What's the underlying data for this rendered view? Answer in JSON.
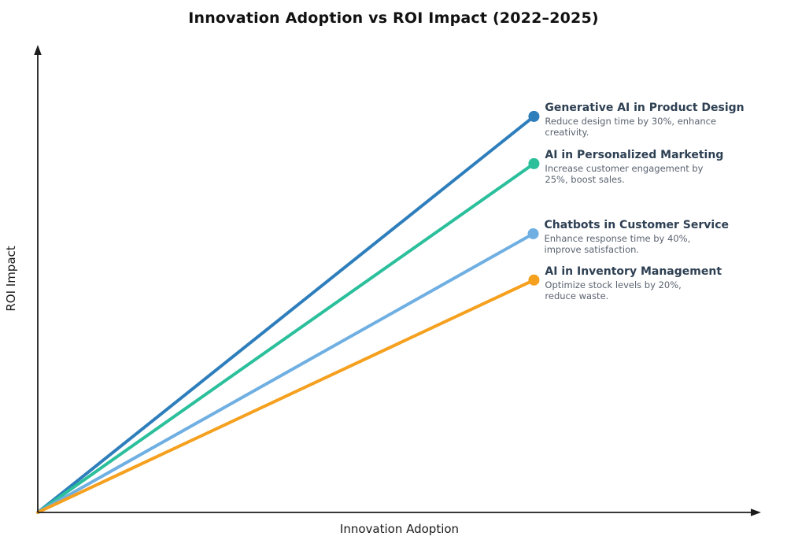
{
  "title": "Innovation Adoption vs ROI Impact (2022–2025)",
  "chart_data": {
    "type": "line",
    "title": "Innovation Adoption vs ROI Impact (2022–2025)",
    "xlabel": "Innovation Adoption",
    "ylabel": "ROI Impact",
    "x_range": [
      0,
      1
    ],
    "y_range": [
      0,
      1
    ],
    "grid": false,
    "ticks": "none (conceptual axes with arrowheads, no tick labels)",
    "legend_position": "none (direct labels at line endpoints)",
    "axis_color": "#1c1c1c",
    "series": [
      {
        "name": "Generative AI in Product Design",
        "description": "Reduce design time by 30%, enhance\ncreativity.",
        "color": "#2e7ebc",
        "x": [
          0,
          0.686
        ],
        "y": [
          0,
          0.847
        ]
      },
      {
        "name": "AI in Personalized Marketing",
        "description": "Increase customer engagement by\n25%, boost sales.",
        "color": "#2bbf9b",
        "x": [
          0,
          0.686
        ],
        "y": [
          0,
          0.746
        ]
      },
      {
        "name": "Chatbots in Customer Service",
        "description": "Enhance response time by 40%,\nimprove satisfaction.",
        "color": "#6fafe2",
        "x": [
          0,
          0.685
        ],
        "y": [
          0,
          0.596
        ]
      },
      {
        "name": "AI in Inventory Management",
        "description": "Optimize stock levels by 20%,\nreduce waste.",
        "color": "#f5a01e",
        "x": [
          0,
          0.686
        ],
        "y": [
          0,
          0.497
        ]
      }
    ]
  }
}
